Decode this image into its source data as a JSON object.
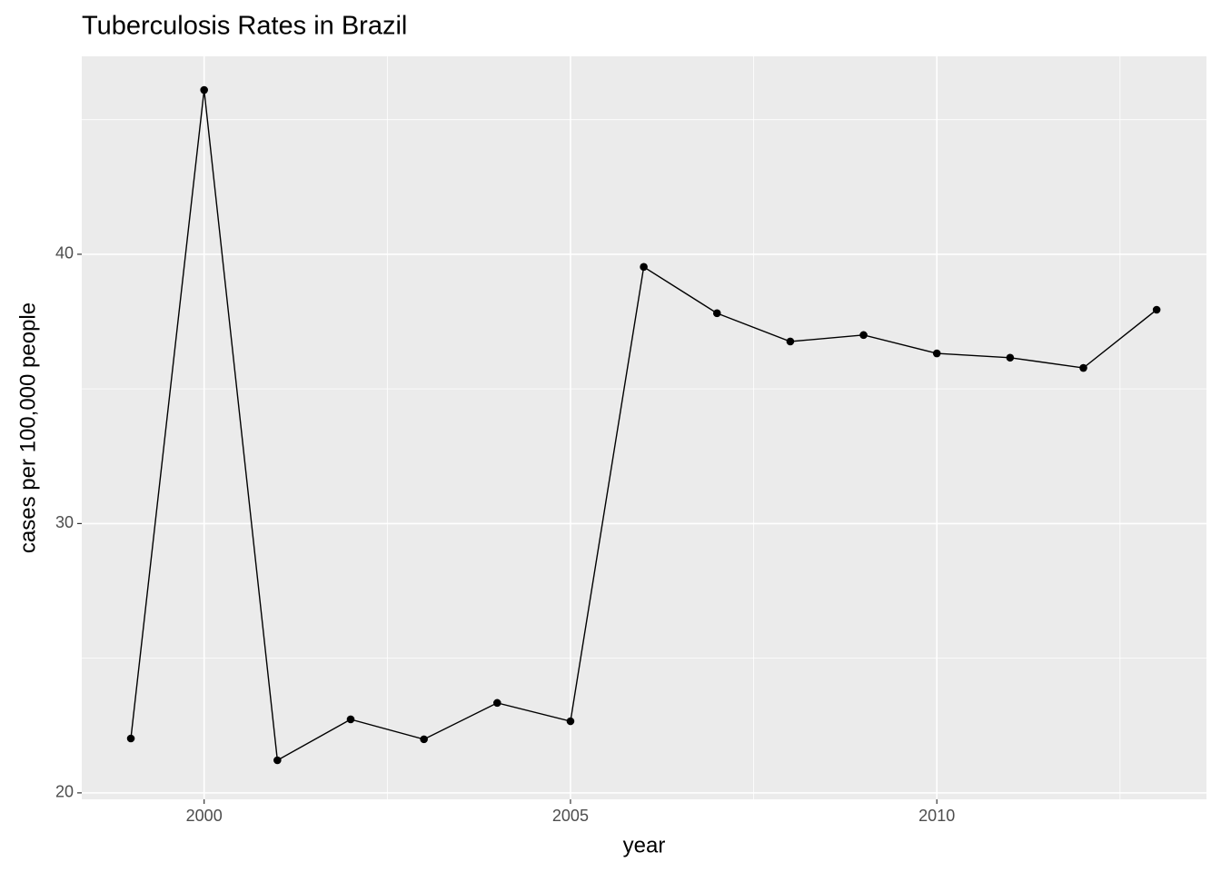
{
  "chart_data": {
    "type": "line",
    "title": "Tuberculosis Rates in Brazil",
    "x_label": "year",
    "y_label": "cases per 100,000 people",
    "x": [
      1999,
      2000,
      2001,
      2002,
      2003,
      2004,
      2005,
      2006,
      2007,
      2008,
      2009,
      2010,
      2011,
      2012,
      2013
    ],
    "series": [
      {
        "color": "#000000",
        "values": [
          22.02,
          46.1,
          21.21,
          22.73,
          21.99,
          23.34,
          22.66,
          39.53,
          37.81,
          36.76,
          37.0,
          36.32,
          36.16,
          35.78,
          37.94
        ]
      }
    ],
    "xlim": [
      1998.33,
      2013.68
    ],
    "xticks": [
      2000,
      2005,
      2010
    ],
    "x_minor_ticks": [
      2002.5,
      2007.5,
      2012.5
    ],
    "ylim": [
      19.76,
      47.35
    ],
    "yticks": [
      20,
      30,
      40
    ],
    "y_minor_ticks": [
      25,
      35,
      45
    ],
    "grid": true,
    "markers": true
  }
}
